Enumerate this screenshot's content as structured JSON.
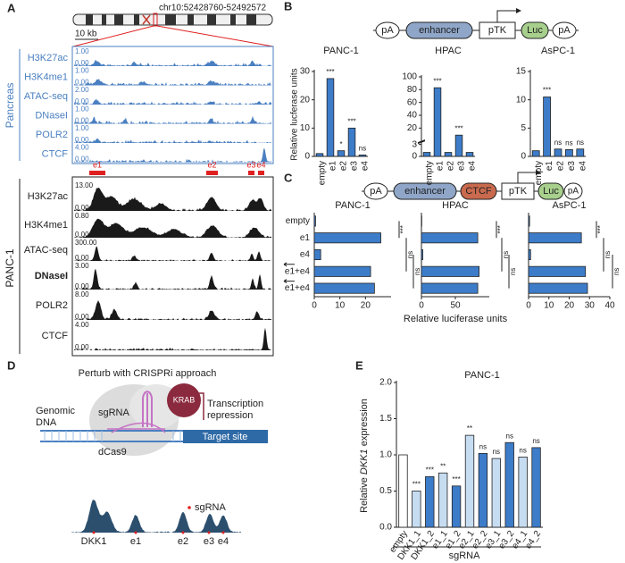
{
  "panel_labels": [
    "A",
    "B",
    "C",
    "D",
    "E"
  ],
  "track_panel": {
    "title": "chr10:52428760-52492572",
    "scale_bar": "10 kb",
    "groups": [
      {
        "name": "Pancreas",
        "tracks": [
          {
            "name": "H3K27ac",
            "max": "1.00",
            "min": "0.00"
          },
          {
            "name": "H3K4me1",
            "max": "1.00",
            "min": "0.00"
          },
          {
            "name": "ATAC-seq",
            "max": "2.00",
            "min": "0.00"
          },
          {
            "name": "DNaseI",
            "max": "1.00",
            "min": "0.00"
          },
          {
            "name": "POLR2",
            "max": "1.00",
            "min": "0.00"
          },
          {
            "name": "CTCF",
            "max": "4.00",
            "min": "0.00"
          }
        ]
      },
      {
        "name": "PANC-1",
        "tracks": [
          {
            "name": "H3K27ac",
            "max": "13.00",
            "min": "0.00"
          },
          {
            "name": "H3K4me1",
            "max": "0.80",
            "min": "0.00"
          },
          {
            "name": "ATAC-seq",
            "max": "300.00",
            "min": "0.00"
          },
          {
            "name": "DNaseI",
            "max": "3.00",
            "min": "0.00"
          },
          {
            "name": "POLR2",
            "max": "8.00",
            "min": "0.00"
          },
          {
            "name": "CTCF",
            "max": "4.00",
            "min": "0.00"
          }
        ]
      }
    ],
    "elements": [
      "e1",
      "e2",
      "e3",
      "e4"
    ]
  },
  "constructs": {
    "b": [
      "pA",
      "enhancer",
      "pTK",
      "Luc",
      "pA"
    ],
    "c": [
      "pA",
      "enhancer",
      "CTCF",
      "pTK",
      "Luc",
      "pA"
    ]
  },
  "diagram": {
    "title": "Perturb with CRISPRi approach",
    "krab": "KRAB",
    "repression": [
      "Transcription",
      "repression"
    ],
    "genomic_dna": [
      "Genomic",
      "DNA"
    ],
    "sgrna": "sgRNA",
    "dcas9": "dCas9",
    "target": "Target site",
    "track_sgrna": "sgRNA",
    "track_labels": [
      "DKK1",
      "e1",
      "e2",
      "e3",
      "e4"
    ]
  },
  "chart_data": [
    {
      "type": "bar",
      "title": "PANC-1",
      "y_label": "Relative lucferase units",
      "categories": [
        "empty",
        "e1",
        "e2",
        "e3",
        "e4"
      ],
      "values": [
        1,
        27.5,
        2,
        10,
        0.5
      ],
      "color": "#3d7cc9",
      "ylim": [
        0,
        30
      ],
      "yticks": [
        0,
        10,
        20,
        30
      ],
      "annotations": [
        null,
        "***",
        "*",
        "***",
        "ns"
      ]
    },
    {
      "type": "bar",
      "title": "HPAC",
      "categories": [
        "empty",
        "e1",
        "e2",
        "e3",
        "e4"
      ],
      "values": [
        1,
        83,
        1,
        9,
        1
      ],
      "color": "#3d7cc9",
      "ylim": [
        0,
        100
      ],
      "ybreak": 3,
      "yticks": [
        0,
        3,
        20,
        40,
        60,
        80,
        100
      ],
      "annotations": [
        null,
        "***",
        null,
        "***",
        null
      ]
    },
    {
      "type": "bar",
      "title": "AsPC-1",
      "categories": [
        "empty",
        "e1",
        "e2",
        "e3",
        "e4"
      ],
      "values": [
        1,
        10.5,
        1.3,
        1.2,
        1.3
      ],
      "color": "#3d7cc9",
      "ylim": [
        0,
        15
      ],
      "yticks": [
        0,
        5,
        10,
        15
      ],
      "annotations": [
        null,
        "***",
        "ns",
        "ns",
        "ns"
      ]
    },
    {
      "type": "hbar",
      "title": "PANC-1",
      "categories": [
        "empty",
        "e1",
        "e4",
        "e1+e4",
        "e1+e4"
      ],
      "values": [
        0.5,
        26,
        2.5,
        22,
        23.5
      ],
      "color": "#3d7cc9",
      "xlim": [
        0,
        30
      ],
      "xticks": [
        0,
        10,
        20
      ],
      "annotations": [
        "***",
        "ns",
        "ns"
      ]
    },
    {
      "type": "hbar",
      "title": "HPAC",
      "x_label": "Relative luciferase units",
      "values": [
        0.5,
        83,
        2,
        85,
        83
      ],
      "color": "#3d7cc9",
      "xlim": [
        0,
        100
      ],
      "xticks": [
        0,
        50
      ],
      "annotations": [
        "***",
        "ns",
        "ns"
      ]
    },
    {
      "type": "hbar",
      "title": "AsPC-1",
      "values": [
        0.5,
        26,
        1,
        28,
        29
      ],
      "color": "#3d7cc9",
      "xlim": [
        0,
        40
      ],
      "xticks": [
        0,
        10,
        20,
        30,
        40
      ],
      "annotations": [
        "***",
        "ns",
        "ns"
      ]
    },
    {
      "type": "bar",
      "title": "PANC-1",
      "y_label": [
        "Relative ",
        "DKK1",
        " expression"
      ],
      "x_group_label": "sgRNA",
      "categories": [
        "empty",
        "DKK1_1",
        "DKK1_2",
        "e1_1",
        "e1_2",
        "e2_1",
        "e2_2",
        "e3_1",
        "e3_2",
        "e4_1",
        "e4_2"
      ],
      "values": [
        1.0,
        0.5,
        0.7,
        0.75,
        0.57,
        1.27,
        1.02,
        0.95,
        1.17,
        0.97,
        1.1
      ],
      "colors": [
        "#ffffff",
        "#c6dcf1",
        "#3d7cc9",
        "#c6dcf1",
        "#3d7cc9",
        "#c6dcf1",
        "#3d7cc9",
        "#c6dcf1",
        "#3d7cc9",
        "#c6dcf1",
        "#3d7cc9"
      ],
      "ylim": [
        0,
        2
      ],
      "yticks": [
        {
          "value": 0,
          "label": "0.0"
        },
        {
          "value": 0.5,
          "label": "0.5"
        },
        {
          "value": 1,
          "label": "1.0"
        },
        {
          "value": 1.5,
          "label": "1.5"
        },
        {
          "value": 2,
          "label": "2.0"
        }
      ],
      "annotations": [
        null,
        "***",
        "***",
        "**",
        "***",
        "**",
        "ns",
        "ns",
        "ns",
        "ns",
        "ns"
      ]
    }
  ]
}
